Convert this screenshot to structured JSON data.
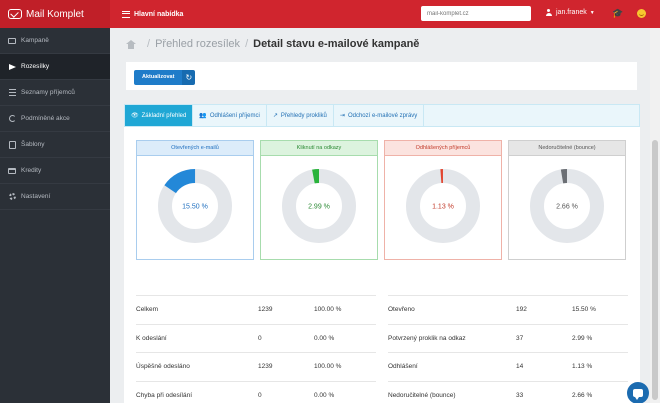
{
  "app": {
    "logo_text": "Mail Komplet",
    "menu_label": "Hlavní nabídka"
  },
  "header": {
    "search_placeholder": "mail-komplet.cz",
    "user_name": "jan.franek"
  },
  "sidebar": {
    "items": [
      {
        "label": "Kampaně",
        "icon": "mail-icon"
      },
      {
        "label": "Rozesílky",
        "icon": "send-icon",
        "active": true
      },
      {
        "label": "Seznamy příjemců",
        "icon": "list-icon"
      },
      {
        "label": "Podmíněné akce",
        "icon": "condition-icon"
      },
      {
        "label": "Šablony",
        "icon": "template-icon"
      },
      {
        "label": "Kredity",
        "icon": "credit-card-icon"
      },
      {
        "label": "Nastavení",
        "icon": "gear-icon"
      }
    ]
  },
  "breadcrumb": {
    "parent": "Přehled rozesílek",
    "current": "Detail stavu e-mailové kampaně"
  },
  "toolbar": {
    "refresh_label": "Aktualizovat"
  },
  "tabs": [
    {
      "label": "Základní přehled",
      "icon": "eye-icon",
      "active": true
    },
    {
      "label": "Odhlášení příjemci",
      "icon": "users-icon"
    },
    {
      "label": "Přehledy prokliků",
      "icon": "external-link-icon"
    },
    {
      "label": "Odchozí e-mailové zprávy",
      "icon": "outbox-icon"
    }
  ],
  "chart_data": [
    {
      "type": "pie",
      "title": "Otevřených e-mailů",
      "value_label": "15.50 %",
      "value": 15.5,
      "color": "#2388d8",
      "head_bg": "#dcecfa",
      "head_color": "#1f6fbf",
      "border": "#a9cdee"
    },
    {
      "type": "pie",
      "title": "Kliknutí na odkazy",
      "value_label": "2.99 %",
      "value": 2.99,
      "color": "#2ab33c",
      "head_bg": "#dcf3de",
      "head_color": "#2c8a35",
      "border": "#a7dcad"
    },
    {
      "type": "pie",
      "title": "Odhlášených příjemců",
      "value_label": "1.13 %",
      "value": 1.13,
      "color": "#e2452f",
      "head_bg": "#fbe3df",
      "head_color": "#c23a2a",
      "border": "#efb2a8"
    },
    {
      "type": "pie",
      "title": "Nedoručitelné (bounce)",
      "value_label": "2.66 %",
      "value": 2.66,
      "color": "#6b6f74",
      "head_bg": "#e6e6e6",
      "head_color": "#555",
      "border": "#cfcfcf"
    }
  ],
  "stats": {
    "left": [
      {
        "label": "Celkem",
        "count": "1239",
        "pct": "100.00 %"
      },
      {
        "label": "K odeslání",
        "count": "0",
        "pct": "0.00 %"
      },
      {
        "label": "Úspěšně odesláno",
        "count": "1239",
        "pct": "100.00 %"
      },
      {
        "label": "Chyba při odesílání",
        "count": "0",
        "pct": "0.00 %"
      }
    ],
    "right": [
      {
        "label": "Otevřeno",
        "count": "192",
        "pct": "15.50 %"
      },
      {
        "label": "Potvrzený proklik na odkaz",
        "count": "37",
        "pct": "2.99 %"
      },
      {
        "label": "Odhlášení",
        "count": "14",
        "pct": "1.13 %"
      },
      {
        "label": "Nedoručitelné (bounce)",
        "count": "33",
        "pct": "2.66 %"
      }
    ]
  }
}
